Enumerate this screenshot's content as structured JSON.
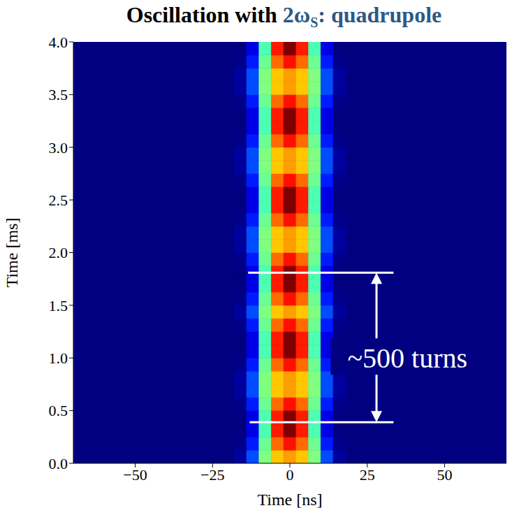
{
  "chart_data": {
    "type": "heatmap",
    "title": [
      {
        "text": "Oscillation with ",
        "color": "#000000"
      },
      {
        "text": "2ω",
        "color": "#2d5987"
      },
      {
        "text": "S",
        "color": "#2d5987",
        "sub": true
      },
      {
        "text": ": quadrupole",
        "color": "#2d5987"
      }
    ],
    "x_label": "Time [ns]",
    "y_label": "Time [ms]",
    "xlim": [
      -70,
      70
    ],
    "ylim": [
      0,
      4
    ],
    "xticks": [
      {
        "value": -50,
        "label": "−50"
      },
      {
        "value": -25,
        "label": "−25"
      },
      0,
      25,
      50
    ],
    "yticks": [
      {
        "value": 0,
        "label": "0.0"
      },
      {
        "value": 0.5,
        "label": "0.5"
      },
      {
        "value": 1,
        "label": "1.0"
      },
      {
        "value": 1.5,
        "label": "1.5"
      },
      {
        "value": 2,
        "label": "2.0"
      },
      {
        "value": 2.5,
        "label": "2.5"
      },
      {
        "value": 3,
        "label": "3.0"
      },
      {
        "value": 3.5,
        "label": "3.5"
      },
      {
        "value": 4,
        "label": "4.0"
      }
    ],
    "color_range": [
      0,
      1
    ],
    "x_bins": [
      -18,
      -14,
      -10,
      -6,
      -2,
      2,
      6,
      10,
      14,
      18
    ],
    "y_bins": [
      0,
      0.125,
      0.25,
      0.375,
      0.5,
      0.625,
      0.75,
      0.875,
      1,
      1.125,
      1.25,
      1.375,
      1.5,
      1.625,
      1.75,
      1.875,
      2,
      2.125,
      2.25,
      2.375,
      2.5,
      2.625,
      2.75,
      2.875,
      3,
      3.125,
      3.25,
      3.375,
      3.5,
      3.625,
      3.75,
      3.875,
      4
    ],
    "cells": [
      [
        0.03,
        0.2,
        0.5,
        0.68,
        0.72,
        0.68,
        0.5,
        0.2,
        0.03
      ],
      [
        0.01,
        0.15,
        0.48,
        0.77,
        0.86,
        0.77,
        0.48,
        0.15,
        0.01
      ],
      [
        0,
        0.1,
        0.45,
        0.85,
        1.0,
        0.85,
        0.45,
        0.1,
        0
      ],
      [
        0,
        0.1,
        0.45,
        0.85,
        1.0,
        0.85,
        0.45,
        0.1,
        0
      ],
      [
        0.01,
        0.15,
        0.48,
        0.77,
        0.86,
        0.77,
        0.48,
        0.15,
        0.01
      ],
      [
        0.03,
        0.2,
        0.5,
        0.68,
        0.72,
        0.68,
        0.5,
        0.2,
        0.03
      ],
      [
        0.03,
        0.2,
        0.5,
        0.68,
        0.72,
        0.68,
        0.5,
        0.2,
        0.03
      ],
      [
        0.01,
        0.15,
        0.48,
        0.77,
        0.86,
        0.77,
        0.48,
        0.15,
        0.01
      ],
      [
        0,
        0.1,
        0.45,
        0.85,
        1.0,
        0.85,
        0.45,
        0.1,
        0
      ],
      [
        0,
        0.1,
        0.45,
        0.85,
        1.0,
        0.85,
        0.45,
        0.1,
        0
      ],
      [
        0.01,
        0.15,
        0.48,
        0.77,
        0.86,
        0.77,
        0.48,
        0.15,
        0.01
      ],
      [
        0.03,
        0.2,
        0.5,
        0.68,
        0.72,
        0.68,
        0.5,
        0.2,
        0.03
      ],
      [
        0.01,
        0.15,
        0.48,
        0.77,
        0.86,
        0.77,
        0.48,
        0.15,
        0.01
      ],
      [
        0,
        0.1,
        0.45,
        0.85,
        1.0,
        0.85,
        0.45,
        0.1,
        0
      ],
      [
        0,
        0.1,
        0.45,
        0.85,
        1.0,
        0.85,
        0.45,
        0.1,
        0
      ],
      [
        0.01,
        0.15,
        0.48,
        0.77,
        0.86,
        0.77,
        0.48,
        0.15,
        0.01
      ],
      [
        0.03,
        0.2,
        0.5,
        0.68,
        0.72,
        0.68,
        0.5,
        0.2,
        0.03
      ],
      [
        0.03,
        0.2,
        0.5,
        0.68,
        0.72,
        0.68,
        0.5,
        0.2,
        0.03
      ],
      [
        0.01,
        0.15,
        0.48,
        0.77,
        0.86,
        0.77,
        0.48,
        0.15,
        0.01
      ],
      [
        0,
        0.1,
        0.45,
        0.85,
        1.0,
        0.85,
        0.45,
        0.1,
        0
      ],
      [
        0,
        0.1,
        0.45,
        0.85,
        1.0,
        0.85,
        0.45,
        0.1,
        0
      ],
      [
        0.01,
        0.15,
        0.48,
        0.77,
        0.86,
        0.77,
        0.48,
        0.15,
        0.01
      ],
      [
        0.03,
        0.2,
        0.5,
        0.68,
        0.72,
        0.68,
        0.5,
        0.2,
        0.03
      ],
      [
        0.03,
        0.2,
        0.5,
        0.68,
        0.72,
        0.68,
        0.5,
        0.2,
        0.03
      ],
      [
        0.01,
        0.15,
        0.48,
        0.77,
        0.86,
        0.77,
        0.48,
        0.15,
        0.01
      ],
      [
        0,
        0.1,
        0.45,
        0.85,
        1.0,
        0.85,
        0.45,
        0.1,
        0
      ],
      [
        0,
        0.1,
        0.45,
        0.85,
        1.0,
        0.85,
        0.45,
        0.1,
        0
      ],
      [
        0.01,
        0.15,
        0.48,
        0.77,
        0.86,
        0.77,
        0.48,
        0.15,
        0.01
      ],
      [
        0.03,
        0.2,
        0.5,
        0.68,
        0.72,
        0.68,
        0.5,
        0.2,
        0.03
      ],
      [
        0.03,
        0.2,
        0.5,
        0.68,
        0.72,
        0.68,
        0.5,
        0.2,
        0.03
      ],
      [
        0.01,
        0.15,
        0.48,
        0.77,
        0.86,
        0.77,
        0.48,
        0.15,
        0.01
      ],
      [
        0,
        0.1,
        0.45,
        0.85,
        1.0,
        0.85,
        0.45,
        0.1,
        0
      ]
    ],
    "annotation": {
      "text": "~500 turns",
      "x": 38,
      "y": 1.0,
      "lines": [
        {
          "y": 1.81,
          "x": [
            -13.5,
            33.5
          ]
        },
        {
          "y": 0.39,
          "x": [
            -13,
            33.5
          ]
        }
      ],
      "arrow": {
        "x": 28,
        "y": [
          0.39,
          1.81
        ]
      }
    }
  }
}
